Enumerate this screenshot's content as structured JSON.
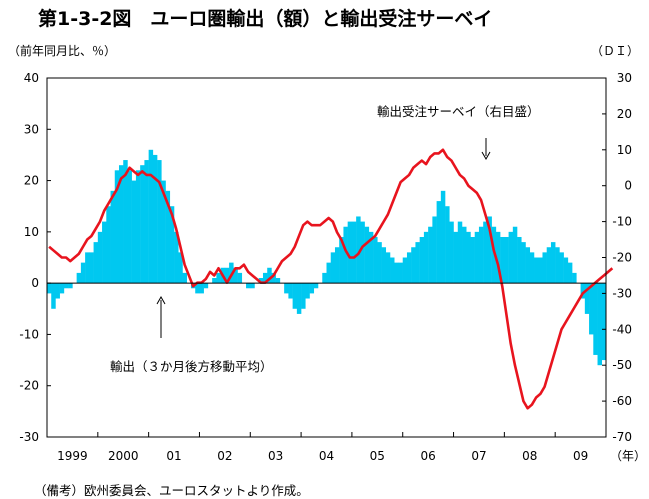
{
  "title": "第1-3-2図　ユーロ圏輸出（額）と輸出受注サーベイ",
  "left_unit": "（前年同月比、％）",
  "right_unit": "（ＤＩ）",
  "note": "（備考）欧州委員会、ユーロスタットより作成。",
  "colors": {
    "bars": "#00c8f0",
    "line": "#e8141e",
    "axis": "#000000"
  },
  "chart_data": {
    "type": "bar+line",
    "x_unit_label": "（年）",
    "x_ticks": [
      "1999",
      "2000",
      "01",
      "02",
      "03",
      "04",
      "05",
      "06",
      "07",
      "08",
      "09"
    ],
    "left_axis": {
      "ylim": [
        -30,
        40
      ],
      "ticks": [
        40,
        30,
        20,
        10,
        0,
        -10,
        -20,
        -30
      ]
    },
    "right_axis": {
      "ylim": [
        -70,
        30
      ],
      "ticks": [
        30,
        20,
        10,
        0,
        -10,
        -20,
        -30,
        -40,
        -50,
        -60,
        -70
      ]
    },
    "series": [
      {
        "name": "輸出（３か月後方移動平均）",
        "type": "bar",
        "axis": "left",
        "values": [
          -2,
          -5,
          -3,
          -2,
          -1,
          -1,
          0,
          2,
          4,
          6,
          6,
          8,
          10,
          12,
          15,
          18,
          22,
          23,
          24,
          22,
          20,
          22,
          23,
          24,
          26,
          25,
          24,
          20,
          18,
          15,
          10,
          6,
          2,
          0,
          -1,
          -2,
          -2,
          -1,
          0,
          1,
          2,
          3,
          3,
          4,
          3,
          2,
          0,
          -1,
          -1,
          0,
          1,
          2,
          3,
          2,
          1,
          0,
          -2,
          -3,
          -5,
          -6,
          -5,
          -3,
          -2,
          -1,
          0,
          2,
          4,
          6,
          7,
          9,
          11,
          12,
          12,
          13,
          12,
          11,
          10,
          9,
          8,
          7,
          6,
          5,
          4,
          4,
          5,
          6,
          7,
          8,
          9,
          10,
          11,
          13,
          16,
          18,
          15,
          12,
          10,
          12,
          11,
          10,
          9,
          10,
          11,
          12,
          13,
          11,
          10,
          9,
          9,
          10,
          11,
          9,
          8,
          7,
          6,
          5,
          5,
          6,
          7,
          8,
          7,
          6,
          5,
          4,
          2,
          0,
          -3,
          -6,
          -10,
          -14,
          -16,
          -15
        ]
      },
      {
        "name": "輸出受注サーベイ（右目盛）",
        "type": "line",
        "axis": "right",
        "values": [
          -17,
          -18,
          -19,
          -20,
          -20,
          -21,
          -20,
          -19,
          -17,
          -15,
          -14,
          -12,
          -10,
          -7,
          -5,
          -3,
          -1,
          2,
          3,
          5,
          4,
          3,
          4,
          3,
          3,
          2,
          1,
          -2,
          -5,
          -8,
          -12,
          -17,
          -22,
          -25,
          -28,
          -27,
          -27,
          -26,
          -24,
          -25,
          -23,
          -25,
          -27,
          -25,
          -23,
          -23,
          -22,
          -24,
          -25,
          -26,
          -27,
          -27,
          -26,
          -25,
          -23,
          -21,
          -20,
          -19,
          -17,
          -14,
          -11,
          -10,
          -11,
          -11,
          -11,
          -10,
          -9,
          -10,
          -13,
          -15,
          -18,
          -20,
          -20,
          -19,
          -17,
          -16,
          -15,
          -14,
          -12,
          -10,
          -8,
          -5,
          -2,
          1,
          2,
          3,
          5,
          6,
          7,
          6,
          8,
          9,
          9,
          10,
          8,
          7,
          5,
          3,
          2,
          0,
          -1,
          -2,
          -4,
          -8,
          -12,
          -18,
          -22,
          -28,
          -36,
          -44,
          -50,
          -55,
          -60,
          -62,
          -61,
          -59,
          -58,
          -56,
          -52,
          -48,
          -44,
          -40,
          -38,
          -36,
          -34,
          -32,
          -30,
          -29,
          -28,
          -27,
          -26,
          -25,
          -24,
          -23
        ]
      }
    ],
    "annotations": [
      {
        "text": "輸出受注サーベイ（右目盛）"
      },
      {
        "text": "輸出（３か月後方移動平均）"
      }
    ]
  }
}
